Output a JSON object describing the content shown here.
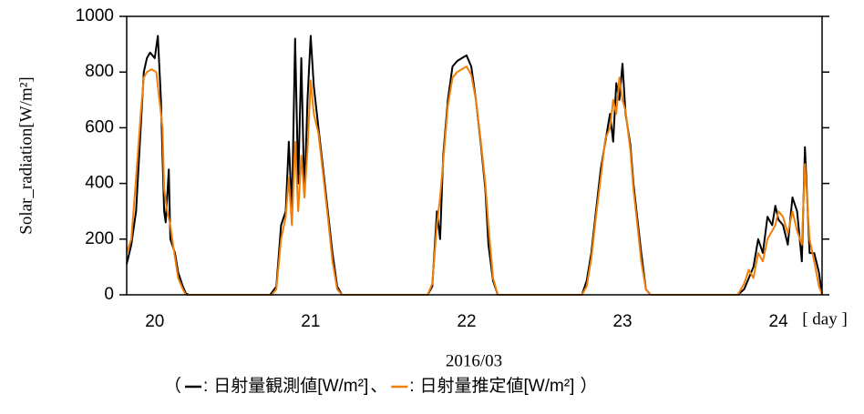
{
  "chart_data": {
    "type": "line",
    "y_label": "Solar_radiation[W/m²]",
    "x_unit_label": "[ day ]",
    "x_label": "2016/03",
    "legend_prefix": "（",
    "legend_colon": ":",
    "legend_separator": "、",
    "legend_suffix": "）",
    "xlim": [
      19.82,
      24.28
    ],
    "xticks": [
      20,
      21,
      22,
      23,
      24
    ],
    "ylim": [
      0,
      1000
    ],
    "yticks": [
      0,
      200,
      400,
      600,
      800,
      1000
    ],
    "series": [
      {
        "name": "日射量観測値[W/m²]",
        "color": "#000000",
        "x": [
          19.82,
          19.85,
          19.88,
          19.91,
          19.93,
          19.95,
          19.97,
          20.0,
          20.02,
          20.04,
          20.05,
          20.06,
          20.07,
          20.09,
          20.1,
          20.13,
          20.15,
          20.18,
          20.2,
          20.22,
          20.74,
          20.78,
          20.81,
          20.84,
          20.86,
          20.88,
          20.9,
          20.92,
          20.94,
          20.96,
          20.98,
          21.0,
          21.02,
          21.05,
          21.08,
          21.11,
          21.14,
          21.17,
          21.2,
          21.75,
          21.78,
          21.81,
          21.83,
          21.85,
          21.88,
          21.91,
          21.94,
          21.97,
          22.0,
          22.03,
          22.06,
          22.09,
          22.12,
          22.14,
          22.17,
          22.2,
          22.74,
          22.77,
          22.8,
          22.83,
          22.86,
          22.89,
          22.92,
          22.94,
          22.96,
          22.98,
          23.0,
          23.02,
          23.05,
          23.07,
          23.09,
          23.12,
          23.15,
          23.18,
          23.74,
          23.78,
          23.81,
          23.84,
          23.87,
          23.9,
          23.93,
          23.96,
          23.98,
          24.0,
          24.03,
          24.06,
          24.09,
          24.12,
          24.15,
          24.17,
          24.2,
          24.23,
          24.26,
          24.28
        ],
        "values": [
          110,
          180,
          300,
          600,
          800,
          850,
          870,
          850,
          930,
          700,
          500,
          300,
          260,
          450,
          200,
          150,
          80,
          30,
          5,
          0,
          0,
          30,
          250,
          300,
          550,
          300,
          920,
          400,
          850,
          350,
          700,
          930,
          750,
          600,
          450,
          300,
          150,
          30,
          0,
          0,
          30,
          300,
          200,
          500,
          700,
          820,
          840,
          850,
          860,
          820,
          700,
          550,
          380,
          180,
          50,
          0,
          0,
          50,
          150,
          300,
          450,
          550,
          650,
          550,
          760,
          700,
          830,
          650,
          540,
          400,
          300,
          150,
          20,
          0,
          0,
          20,
          60,
          100,
          200,
          150,
          280,
          250,
          320,
          270,
          250,
          180,
          350,
          300,
          120,
          530,
          150,
          150,
          80,
          0
        ]
      },
      {
        "name": "日射量推定値[W/m²]",
        "color": "#f07f09",
        "x": [
          19.82,
          19.85,
          19.88,
          19.91,
          19.93,
          19.95,
          19.98,
          20.01,
          20.03,
          20.05,
          20.06,
          20.08,
          20.1,
          20.12,
          20.15,
          20.18,
          20.2,
          20.75,
          20.78,
          20.81,
          20.84,
          20.86,
          20.88,
          20.9,
          20.92,
          20.94,
          20.96,
          20.98,
          21.0,
          21.02,
          21.05,
          21.08,
          21.11,
          21.14,
          21.17,
          21.2,
          21.75,
          21.78,
          21.81,
          21.83,
          21.85,
          21.88,
          21.91,
          21.94,
          21.97,
          22.0,
          22.03,
          22.06,
          22.09,
          22.12,
          22.14,
          22.17,
          22.2,
          22.74,
          22.77,
          22.8,
          22.83,
          22.86,
          22.89,
          22.92,
          22.94,
          22.96,
          22.98,
          23.0,
          23.02,
          23.05,
          23.07,
          23.09,
          23.12,
          23.15,
          23.18,
          23.74,
          23.78,
          23.81,
          23.84,
          23.87,
          23.9,
          23.93,
          23.96,
          23.98,
          24.0,
          24.03,
          24.06,
          24.09,
          24.12,
          24.15,
          24.17,
          24.2,
          24.23,
          24.26,
          24.28
        ],
        "values": [
          150,
          200,
          420,
          650,
          780,
          800,
          810,
          800,
          700,
          600,
          380,
          300,
          250,
          170,
          60,
          20,
          0,
          0,
          20,
          200,
          280,
          420,
          250,
          550,
          300,
          500,
          350,
          520,
          770,
          650,
          580,
          430,
          280,
          120,
          20,
          0,
          0,
          40,
          250,
          350,
          480,
          680,
          780,
          800,
          810,
          820,
          790,
          700,
          560,
          400,
          250,
          60,
          0,
          0,
          30,
          130,
          280,
          420,
          560,
          600,
          700,
          650,
          780,
          700,
          660,
          520,
          380,
          280,
          120,
          20,
          0,
          0,
          40,
          90,
          60,
          150,
          120,
          200,
          230,
          250,
          300,
          280,
          220,
          300,
          230,
          180,
          470,
          200,
          120,
          30,
          0
        ]
      }
    ]
  }
}
